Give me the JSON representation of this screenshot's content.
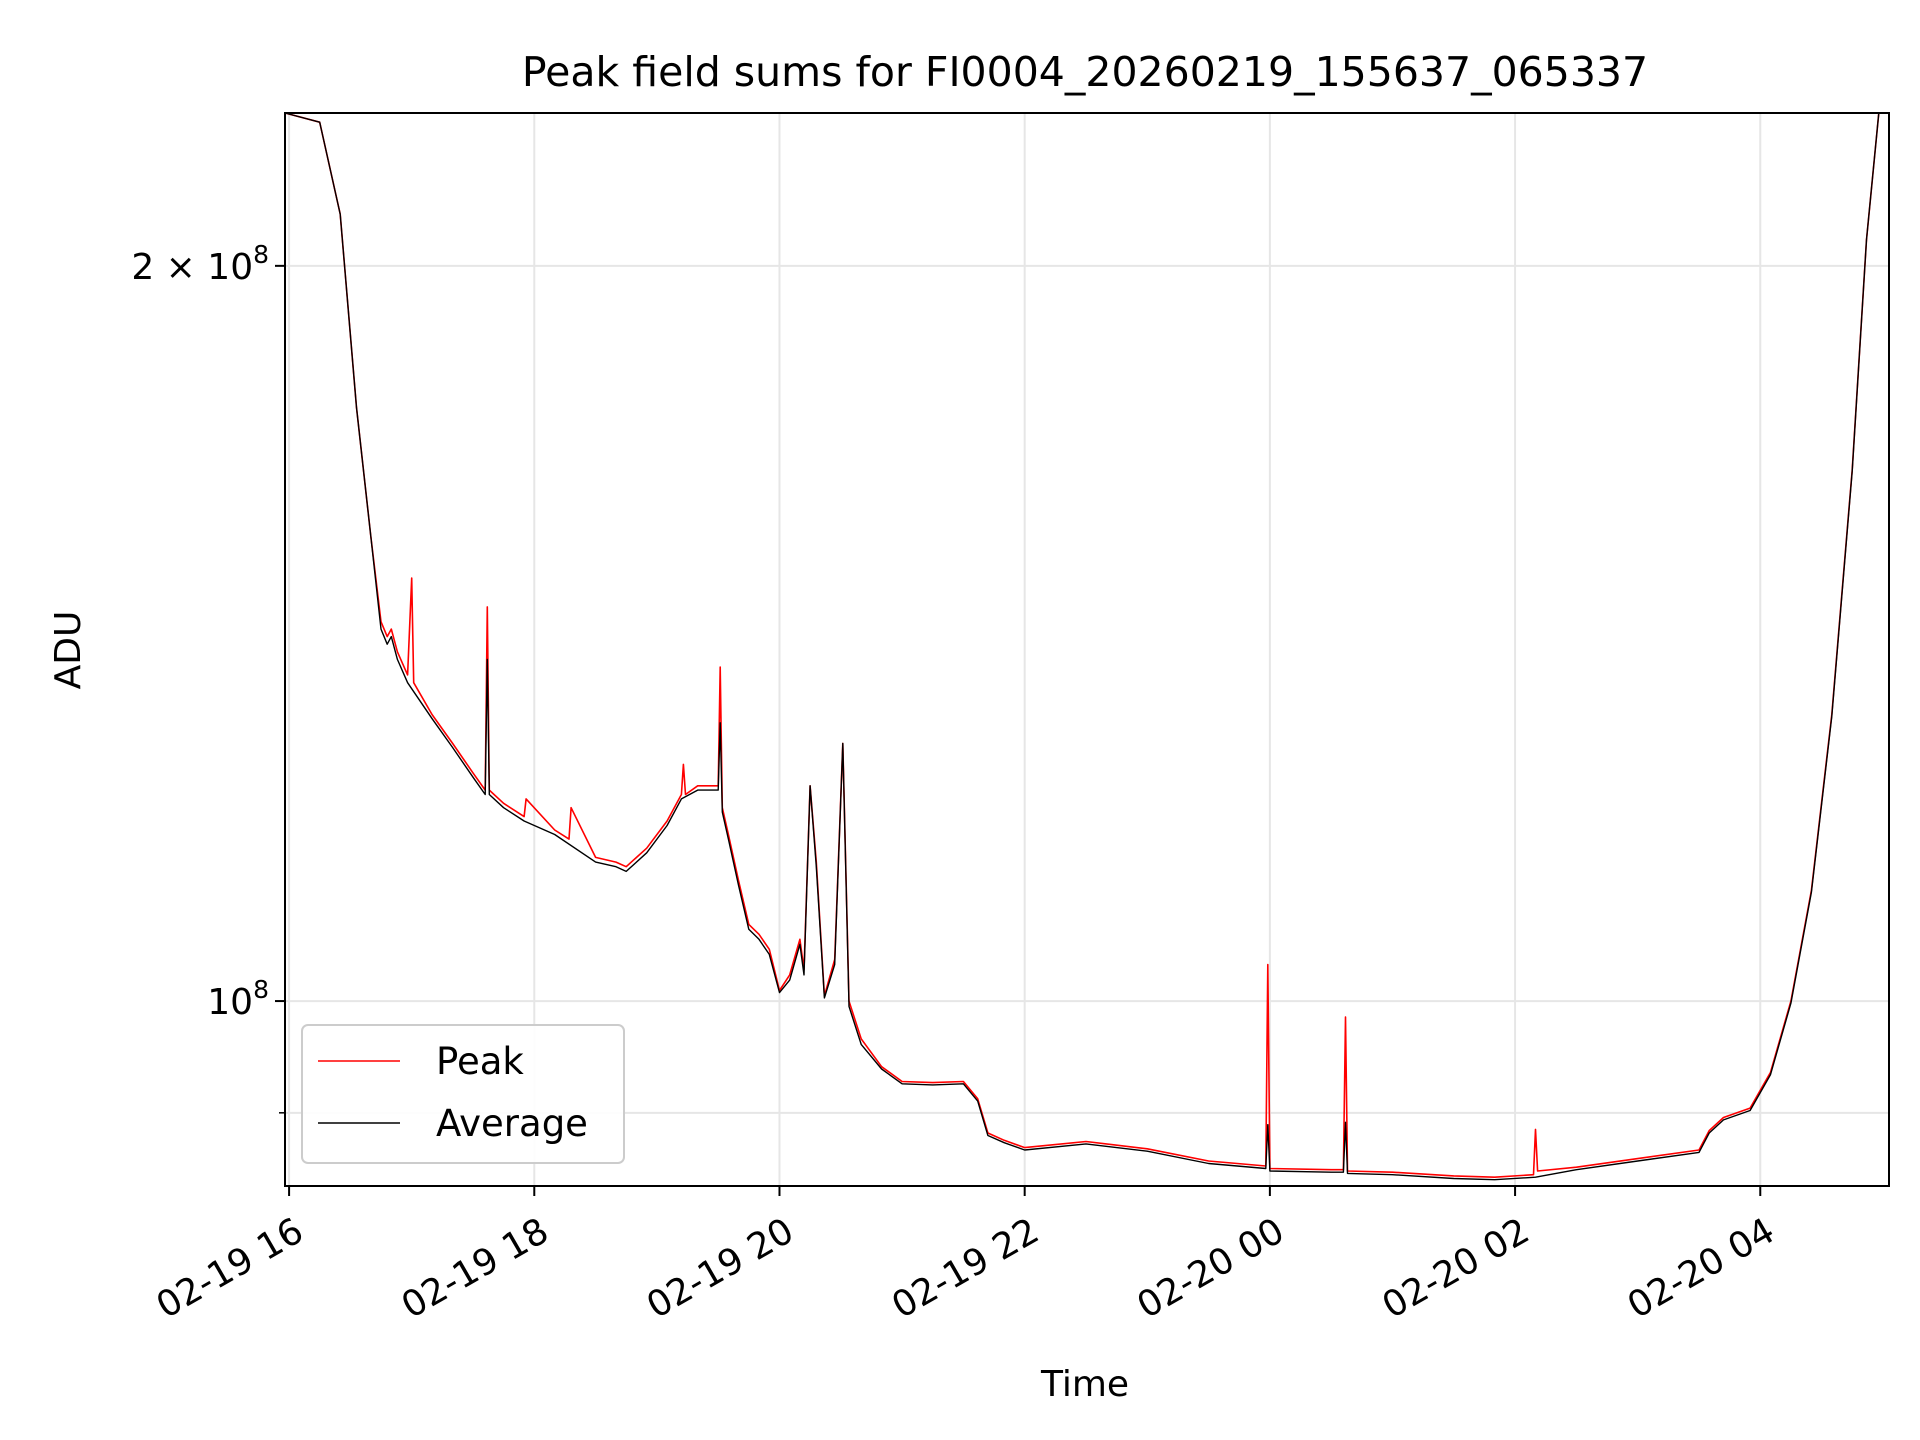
{
  "chart_data": {
    "type": "line",
    "title": "Peak field sums for FI0004_20260219_155637_065337",
    "xlabel": "Time",
    "ylabel": "ADU",
    "yscale": "log",
    "grid": true,
    "legend_placement": "lower-left",
    "x_ticks": [
      "02-19 16",
      "02-19 18",
      "02-19 20",
      "02-19 22",
      "02-20 00",
      "02-20 02",
      "02-20 04"
    ],
    "y_ticks_major": [
      {
        "value": 200000000,
        "base": "2 × 10",
        "exp": "8"
      },
      {
        "value": 100000000,
        "base": "10",
        "exp": "8"
      }
    ],
    "y_ticks_minor": [
      90000000
    ],
    "xlim": [
      "2026-02-19 15:58",
      "2026-02-20 05:03"
    ],
    "ylim": [
      84000000,
      231000000
    ],
    "series": [
      {
        "name": "Peak",
        "color": "#ff0000",
        "points": [
          [
            "2026-02-19 15:58",
            231000000
          ],
          [
            "2026-02-19 16:15",
            229000000
          ],
          [
            "2026-02-19 16:25",
            210000000
          ],
          [
            "2026-02-19 16:33",
            175000000
          ],
          [
            "2026-02-19 16:40",
            155000000
          ],
          [
            "2026-02-19 16:45",
            143000000
          ],
          [
            "2026-02-19 16:48",
            141000000
          ],
          [
            "2026-02-19 16:50",
            142000000
          ],
          [
            "2026-02-19 16:53",
            139000000
          ],
          [
            "2026-02-19 16:58",
            136000000
          ],
          [
            "2026-02-19 17:00",
            149000000
          ],
          [
            "2026-02-19 17:01",
            135000000
          ],
          [
            "2026-02-19 17:10",
            131000000
          ],
          [
            "2026-02-19 17:20",
            127500000
          ],
          [
            "2026-02-19 17:30",
            124000000
          ],
          [
            "2026-02-19 17:36",
            122000000
          ],
          [
            "2026-02-19 17:37",
            145000000
          ],
          [
            "2026-02-19 17:38",
            122000000
          ],
          [
            "2026-02-19 17:45",
            120500000
          ],
          [
            "2026-02-19 17:55",
            119000000
          ],
          [
            "2026-02-19 17:56",
            121000000
          ],
          [
            "2026-02-19 18:10",
            117500000
          ],
          [
            "2026-02-19 18:17",
            116500000
          ],
          [
            "2026-02-19 18:18",
            120000000
          ],
          [
            "2026-02-19 18:30",
            114500000
          ],
          [
            "2026-02-19 18:40",
            114000000
          ],
          [
            "2026-02-19 18:45",
            113500000
          ],
          [
            "2026-02-19 18:55",
            115500000
          ],
          [
            "2026-02-19 19:05",
            118500000
          ],
          [
            "2026-02-19 19:12",
            121500000
          ],
          [
            "2026-02-19 19:13",
            125000000
          ],
          [
            "2026-02-19 19:14",
            121500000
          ],
          [
            "2026-02-19 19:20",
            122500000
          ],
          [
            "2026-02-19 19:30",
            122500000
          ],
          [
            "2026-02-19 19:31",
            137000000
          ],
          [
            "2026-02-19 19:32",
            120000000
          ],
          [
            "2026-02-19 19:35",
            117000000
          ],
          [
            "2026-02-19 19:40",
            112000000
          ],
          [
            "2026-02-19 19:45",
            107500000
          ],
          [
            "2026-02-19 19:50",
            106500000
          ],
          [
            "2026-02-19 19:55",
            105000000
          ],
          [
            "2026-02-19 20:00",
            101000000
          ],
          [
            "2026-02-19 20:05",
            102500000
          ],
          [
            "2026-02-19 20:10",
            106000000
          ],
          [
            "2026-02-19 20:12",
            103000000
          ],
          [
            "2026-02-19 20:15",
            122500000
          ],
          [
            "2026-02-19 20:18",
            114000000
          ],
          [
            "2026-02-19 20:22",
            100500000
          ],
          [
            "2026-02-19 20:27",
            104000000
          ],
          [
            "2026-02-19 20:31",
            127500000
          ],
          [
            "2026-02-19 20:34",
            100000000
          ],
          [
            "2026-02-19 20:40",
            96500000
          ],
          [
            "2026-02-19 20:50",
            94000000
          ],
          [
            "2026-02-19 21:00",
            92700000
          ],
          [
            "2026-02-19 21:15",
            92600000
          ],
          [
            "2026-02-19 21:30",
            92700000
          ],
          [
            "2026-02-19 21:37",
            91200000
          ],
          [
            "2026-02-19 21:42",
            88300000
          ],
          [
            "2026-02-19 21:50",
            87700000
          ],
          [
            "2026-02-19 22:00",
            87100000
          ],
          [
            "2026-02-19 22:30",
            87600000
          ],
          [
            "2026-02-19 23:00",
            87000000
          ],
          [
            "2026-02-19 23:30",
            86000000
          ],
          [
            "2026-02-19 23:58",
            85600000
          ],
          [
            "2026-02-19 23:59",
            103500000
          ],
          [
            "2026-02-20 00:00",
            85400000
          ],
          [
            "2026-02-20 00:30",
            85300000
          ],
          [
            "2026-02-20 00:36",
            85300000
          ],
          [
            "2026-02-20 00:37",
            98500000
          ],
          [
            "2026-02-20 00:38",
            85200000
          ],
          [
            "2026-02-20 01:00",
            85100000
          ],
          [
            "2026-02-20 01:30",
            84800000
          ],
          [
            "2026-02-20 01:50",
            84700000
          ],
          [
            "2026-02-20 02:09",
            84900000
          ],
          [
            "2026-02-20 02:10",
            88600000
          ],
          [
            "2026-02-20 02:11",
            85200000
          ],
          [
            "2026-02-20 02:30",
            85500000
          ],
          [
            "2026-02-20 03:00",
            86200000
          ],
          [
            "2026-02-20 03:30",
            86900000
          ],
          [
            "2026-02-20 03:35",
            88500000
          ],
          [
            "2026-02-20 03:42",
            89600000
          ],
          [
            "2026-02-20 03:55",
            90400000
          ],
          [
            "2026-02-20 04:05",
            93500000
          ],
          [
            "2026-02-20 04:15",
            100000000
          ],
          [
            "2026-02-20 04:25",
            111000000
          ],
          [
            "2026-02-20 04:35",
            131000000
          ],
          [
            "2026-02-20 04:45",
            165000000
          ],
          [
            "2026-02-20 04:52",
            205000000
          ],
          [
            "2026-02-20 04:58",
            231000000
          ],
          [
            "2026-02-20 05:03",
            231000000
          ]
        ]
      },
      {
        "name": "Average",
        "color": "#000000",
        "points": [
          [
            "2026-02-19 15:58",
            231000000
          ],
          [
            "2026-02-19 16:15",
            229000000
          ],
          [
            "2026-02-19 16:25",
            210000000
          ],
          [
            "2026-02-19 16:33",
            175000000
          ],
          [
            "2026-02-19 16:40",
            155000000
          ],
          [
            "2026-02-19 16:45",
            142000000
          ],
          [
            "2026-02-19 16:48",
            140000000
          ],
          [
            "2026-02-19 16:50",
            141000000
          ],
          [
            "2026-02-19 16:53",
            138000000
          ],
          [
            "2026-02-19 16:58",
            135000000
          ],
          [
            "2026-02-19 17:10",
            130500000
          ],
          [
            "2026-02-19 17:20",
            127000000
          ],
          [
            "2026-02-19 17:30",
            123500000
          ],
          [
            "2026-02-19 17:36",
            121500000
          ],
          [
            "2026-02-19 17:37",
            138000000
          ],
          [
            "2026-02-19 17:38",
            121500000
          ],
          [
            "2026-02-19 17:45",
            120000000
          ],
          [
            "2026-02-19 17:55",
            118500000
          ],
          [
            "2026-02-19 18:10",
            117000000
          ],
          [
            "2026-02-19 18:30",
            114000000
          ],
          [
            "2026-02-19 18:40",
            113500000
          ],
          [
            "2026-02-19 18:45",
            113000000
          ],
          [
            "2026-02-19 18:55",
            115000000
          ],
          [
            "2026-02-19 19:05",
            118000000
          ],
          [
            "2026-02-19 19:12",
            121000000
          ],
          [
            "2026-02-19 19:20",
            122000000
          ],
          [
            "2026-02-19 19:30",
            122000000
          ],
          [
            "2026-02-19 19:31",
            130000000
          ],
          [
            "2026-02-19 19:32",
            119500000
          ],
          [
            "2026-02-19 19:35",
            116500000
          ],
          [
            "2026-02-19 19:40",
            111500000
          ],
          [
            "2026-02-19 19:45",
            107000000
          ],
          [
            "2026-02-19 19:50",
            106000000
          ],
          [
            "2026-02-19 19:55",
            104500000
          ],
          [
            "2026-02-19 20:00",
            100800000
          ],
          [
            "2026-02-19 20:05",
            102000000
          ],
          [
            "2026-02-19 20:10",
            105500000
          ],
          [
            "2026-02-19 20:12",
            102500000
          ],
          [
            "2026-02-19 20:15",
            122500000
          ],
          [
            "2026-02-19 20:18",
            113500000
          ],
          [
            "2026-02-19 20:22",
            100300000
          ],
          [
            "2026-02-19 20:27",
            103500000
          ],
          [
            "2026-02-19 20:31",
            127500000
          ],
          [
            "2026-02-19 20:34",
            99500000
          ],
          [
            "2026-02-19 20:40",
            96000000
          ],
          [
            "2026-02-19 20:50",
            93800000
          ],
          [
            "2026-02-19 21:00",
            92500000
          ],
          [
            "2026-02-19 21:15",
            92400000
          ],
          [
            "2026-02-19 21:30",
            92500000
          ],
          [
            "2026-02-19 21:37",
            91000000
          ],
          [
            "2026-02-19 21:42",
            88100000
          ],
          [
            "2026-02-19 21:50",
            87500000
          ],
          [
            "2026-02-19 22:00",
            86900000
          ],
          [
            "2026-02-19 22:30",
            87400000
          ],
          [
            "2026-02-19 23:00",
            86800000
          ],
          [
            "2026-02-19 23:30",
            85800000
          ],
          [
            "2026-02-19 23:58",
            85400000
          ],
          [
            "2026-02-19 23:59",
            89000000
          ],
          [
            "2026-02-20 00:00",
            85200000
          ],
          [
            "2026-02-20 00:30",
            85100000
          ],
          [
            "2026-02-20 00:36",
            85100000
          ],
          [
            "2026-02-20 00:37",
            89200000
          ],
          [
            "2026-02-20 00:38",
            85000000
          ],
          [
            "2026-02-20 01:00",
            84900000
          ],
          [
            "2026-02-20 01:30",
            84600000
          ],
          [
            "2026-02-20 01:50",
            84500000
          ],
          [
            "2026-02-20 02:10",
            84700000
          ],
          [
            "2026-02-20 02:30",
            85300000
          ],
          [
            "2026-02-20 03:00",
            86000000
          ],
          [
            "2026-02-20 03:30",
            86700000
          ],
          [
            "2026-02-20 03:35",
            88300000
          ],
          [
            "2026-02-20 03:42",
            89400000
          ],
          [
            "2026-02-20 03:55",
            90200000
          ],
          [
            "2026-02-20 04:05",
            93300000
          ],
          [
            "2026-02-20 04:15",
            99800000
          ],
          [
            "2026-02-20 04:25",
            110800000
          ],
          [
            "2026-02-20 04:35",
            130800000
          ],
          [
            "2026-02-20 04:45",
            164800000
          ],
          [
            "2026-02-20 04:52",
            205000000
          ],
          [
            "2026-02-20 04:58",
            231000000
          ],
          [
            "2026-02-20 05:03",
            231000000
          ]
        ]
      }
    ]
  }
}
